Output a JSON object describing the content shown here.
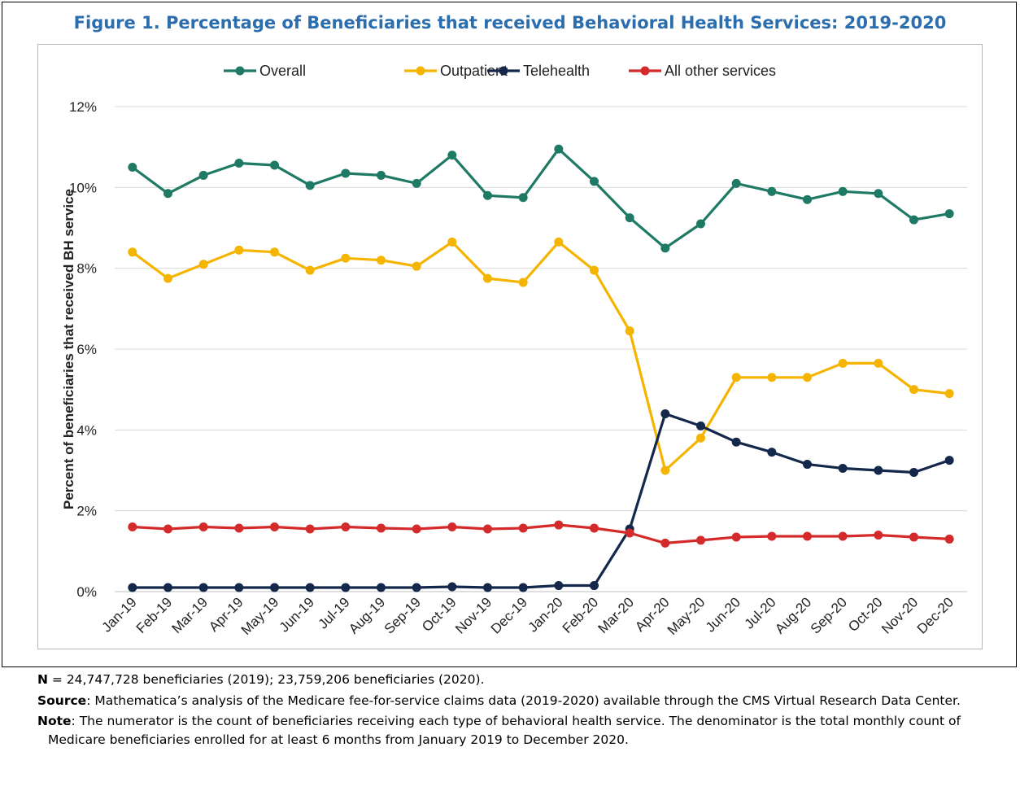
{
  "figure_title": "Figure 1. Percentage of Beneficiaries that received Behavioral Health Services: 2019-2020",
  "chart_data": {
    "type": "line",
    "title": "Figure 1. Percentage of Beneficiaries that received Behavioral Health Services: 2019-2020",
    "xlabel": "",
    "ylabel": "Percent of beneficiaries that received BH service",
    "ylim": [
      0,
      12
    ],
    "yticks": [
      "0%",
      "2%",
      "4%",
      "6%",
      "8%",
      "10%",
      "12%"
    ],
    "grid": "horizontal",
    "legend_position": "top",
    "categories": [
      "Jan-19",
      "Feb-19",
      "Mar-19",
      "Apr-19",
      "May-19",
      "Jun-19",
      "Jul-19",
      "Aug-19",
      "Sep-19",
      "Oct-19",
      "Nov-19",
      "Dec-19",
      "Jan-20",
      "Feb-20",
      "Mar-20",
      "Apr-20",
      "May-20",
      "Jun-20",
      "Jul-20",
      "Aug-20",
      "Sep-20",
      "Oct-20",
      "Nov-20",
      "Dec-20"
    ],
    "series": [
      {
        "name": "Overall",
        "color": "#1f7a65",
        "values": [
          10.5,
          9.85,
          10.3,
          10.6,
          10.55,
          10.05,
          10.35,
          10.3,
          10.1,
          10.8,
          9.8,
          9.75,
          10.95,
          10.15,
          9.25,
          8.5,
          9.1,
          10.1,
          9.9,
          9.7,
          9.9,
          9.85,
          9.2,
          9.35
        ]
      },
      {
        "name": "Outpatient",
        "color": "#f5b400",
        "values": [
          8.4,
          7.75,
          8.1,
          8.45,
          8.4,
          7.95,
          8.25,
          8.2,
          8.05,
          8.65,
          7.75,
          7.65,
          8.65,
          7.95,
          6.45,
          3.0,
          3.8,
          5.3,
          5.3,
          5.3,
          5.65,
          5.65,
          5.0,
          4.9
        ]
      },
      {
        "name": "Telehealth",
        "color": "#14284b",
        "values": [
          0.1,
          0.1,
          0.1,
          0.1,
          0.1,
          0.1,
          0.1,
          0.1,
          0.1,
          0.12,
          0.1,
          0.1,
          0.15,
          0.15,
          1.55,
          4.4,
          4.1,
          3.7,
          3.45,
          3.15,
          3.05,
          3.0,
          2.95,
          3.25
        ]
      },
      {
        "name": "All other services",
        "color": "#d42a2a",
        "values": [
          1.6,
          1.55,
          1.6,
          1.57,
          1.6,
          1.55,
          1.6,
          1.57,
          1.55,
          1.6,
          1.55,
          1.57,
          1.65,
          1.57,
          1.45,
          1.2,
          1.27,
          1.35,
          1.37,
          1.37,
          1.37,
          1.4,
          1.35,
          1.3
        ]
      }
    ]
  },
  "notes": [
    {
      "label": "N",
      "text": " = 24,747,728 beneficiaries (2019); 23,759,206 beneficiaries (2020)."
    },
    {
      "label": "Source",
      "text": ":  Mathematica’s analysis of the Medicare fee-for-service claims data (2019-2020) available through the CMS Virtual Research Data Center."
    },
    {
      "label": "Note",
      "text": ":  The numerator is the count of beneficiaries receiving each type of behavioral health service. The denominator is the total monthly count of Medicare beneficiaries enrolled for at least 6 months from January 2019 to December 2020."
    }
  ]
}
